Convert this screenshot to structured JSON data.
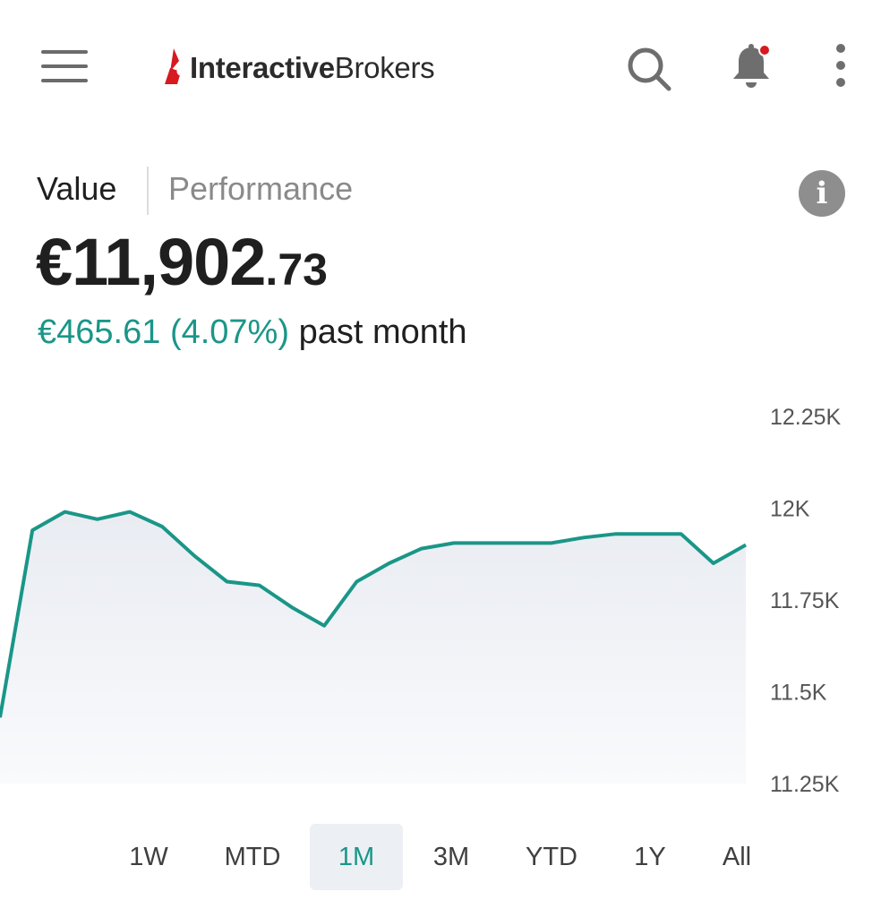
{
  "header": {
    "menu_icon": "hamburger-menu-icon",
    "logo": {
      "bold": "Interactive",
      "regular": "Brokers",
      "accent_color": "#d71920"
    },
    "search_icon": "search-icon",
    "notifications_icon": "bell-icon",
    "more_icon": "more-vertical-icon"
  },
  "tabs": {
    "active": "Value",
    "inactive": "Performance"
  },
  "info_icon": "info-icon",
  "portfolio": {
    "value_main": "€11,902",
    "value_cents": ".73",
    "change_amount": "€465.61",
    "change_percent": "(4.07%)",
    "change_period": "past month",
    "positive_color": "#1a9688"
  },
  "chart_data": {
    "type": "area",
    "ylim": [
      11250,
      12250
    ],
    "y_ticks": [
      "12.25K",
      "12K",
      "11.75K",
      "11.5K",
      "11.25K"
    ],
    "line_color": "#1a9688",
    "grid": false,
    "series": [
      {
        "values": [
          11430,
          11940,
          11990,
          11970,
          11990,
          11950,
          11870,
          11800,
          11790,
          11730,
          11680,
          11800,
          11850,
          11890,
          11905,
          11905,
          11905,
          11905,
          11920,
          11930,
          11930,
          11930,
          11850,
          11900
        ]
      }
    ]
  },
  "ranges": {
    "items": [
      "1W",
      "MTD",
      "1M",
      "3M",
      "YTD",
      "1Y",
      "All"
    ],
    "selected": "1M"
  }
}
